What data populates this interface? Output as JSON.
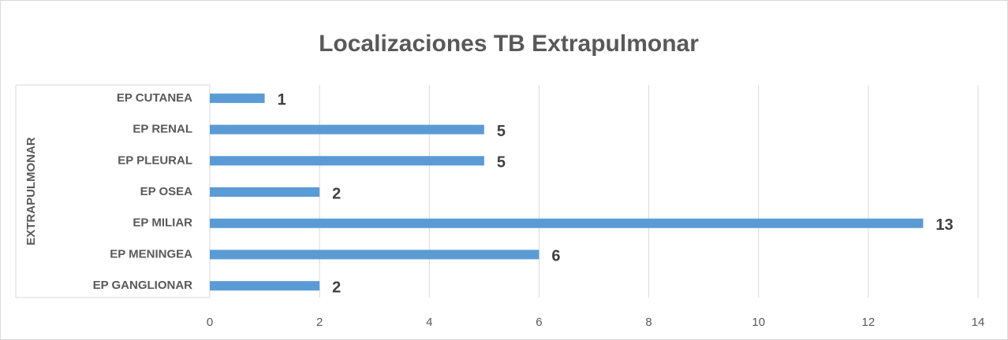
{
  "chart_data": {
    "type": "bar",
    "orientation": "horizontal",
    "title": "Localizaciones TB Extrapulmonar",
    "group_label": "EXTRAPULMONAR",
    "categories": [
      "EP CUTANEA",
      "EP RENAL",
      "EP PLEURAL",
      "EP OSEA",
      "EP MILIAR",
      "EP MENINGEA",
      "EP GANGLIONAR"
    ],
    "values": [
      1,
      5,
      5,
      2,
      13,
      6,
      2
    ],
    "color": "#5b9bd5",
    "xlim": [
      0,
      14
    ],
    "xticks": [
      0,
      2,
      4,
      6,
      8,
      10,
      12,
      14
    ],
    "grid": true
  }
}
